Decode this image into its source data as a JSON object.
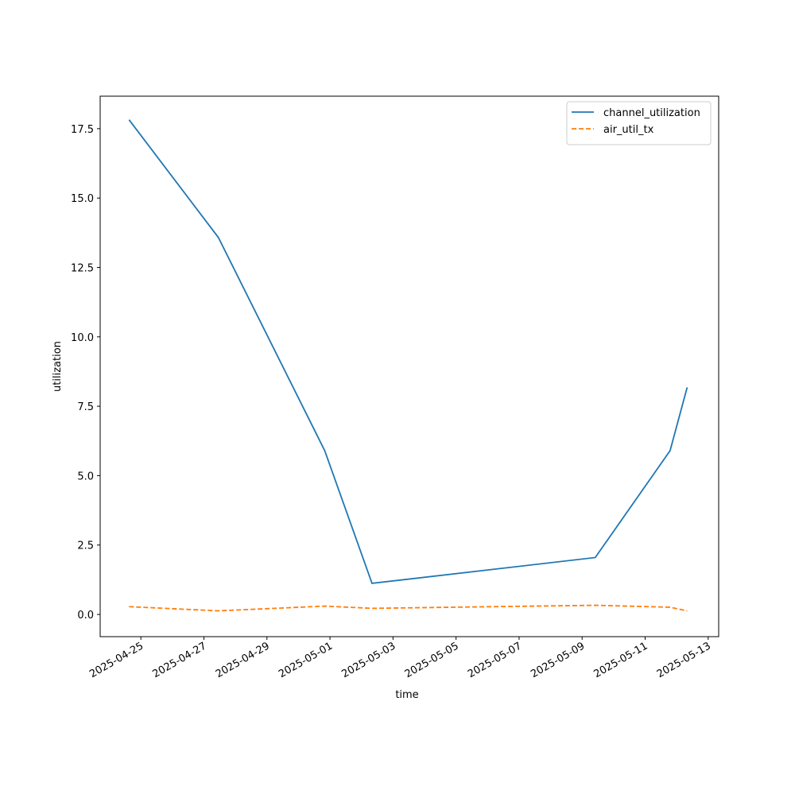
{
  "chart_data": {
    "type": "line",
    "xlabel": "time",
    "ylabel": "utilization",
    "x": [
      "2025-04-24T15:00",
      "2025-04-27T11:00",
      "2025-04-30T20:00",
      "2025-05-02T08:00",
      "2025-05-09T10:00",
      "2025-05-11T19:00",
      "2025-05-12T08:00"
    ],
    "series": [
      {
        "name": "channel_utilization",
        "color": "#1f77b4",
        "dash": "solid",
        "values": [
          17.82,
          13.58,
          5.9,
          1.12,
          2.05,
          5.9,
          8.18
        ]
      },
      {
        "name": "air_util_tx",
        "color": "#ff7f0e",
        "dash": "dashed",
        "values": [
          0.28,
          0.13,
          0.3,
          0.22,
          0.33,
          0.26,
          0.13
        ]
      }
    ],
    "xlim": [
      "2025-04-23T17:00",
      "2025-05-13T08:00"
    ],
    "xticks": [
      "2025-04-25",
      "2025-04-27",
      "2025-04-29",
      "2025-05-01",
      "2025-05-03",
      "2025-05-05",
      "2025-05-07",
      "2025-05-09",
      "2025-05-11",
      "2025-05-13"
    ],
    "ylim": [
      -0.8,
      18.67
    ],
    "yticks": [
      {
        "value": 0,
        "label": "0.0"
      },
      {
        "value": 2.5,
        "label": "2.5"
      },
      {
        "value": 5,
        "label": "5.0"
      },
      {
        "value": 7.5,
        "label": "7.5"
      },
      {
        "value": 10,
        "label": "10.0"
      },
      {
        "value": 12.5,
        "label": "12.5"
      },
      {
        "value": 15,
        "label": "15.0"
      },
      {
        "value": 17.5,
        "label": "17.5"
      }
    ],
    "grid": false,
    "legend": "upper right"
  }
}
